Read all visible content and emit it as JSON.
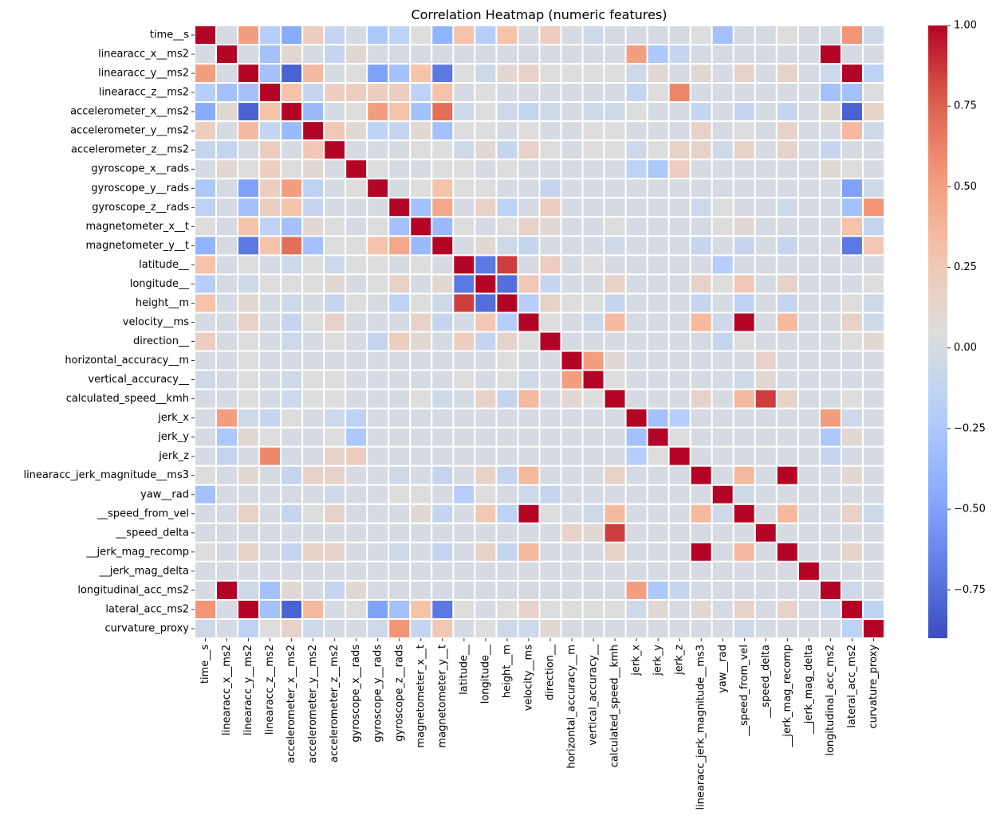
{
  "chart_data": {
    "type": "heatmap",
    "title": "Correlation Heatmap (numeric features)",
    "xlabel": "",
    "ylabel": "",
    "colormap": "coolwarm",
    "vmin": -0.9,
    "vmax": 1.0,
    "colorbar_ticks": [
      1.0,
      0.75,
      0.5,
      0.25,
      0.0,
      -0.25,
      -0.5,
      -0.75
    ],
    "colorbar_tick_labels": [
      "1.00",
      "0.75",
      "0.50",
      "0.25",
      "0.00",
      "−0.25",
      "−0.50",
      "−0.75"
    ],
    "labels": [
      "time__s",
      "linearacc_x__ms2",
      "linearacc_y__ms2",
      "linearacc_z__ms2",
      "accelerometer_x__ms2",
      "accelerometer_y__ms2",
      "accelerometer_z__ms2",
      "gyroscope_x__rads",
      "gyroscope_y__rads",
      "gyroscope_z__rads",
      "magnetometer_x__t",
      "magnetometer_y__t",
      "latitude__",
      "longitude__",
      "height__m",
      "velocity__ms",
      "direction__",
      "horizontal_accuracy__m",
      "vertical_accuracy__",
      "calculated_speed__kmh",
      "jerk_x",
      "jerk_y",
      "jerk_z",
      "linearacc_jerk_magnitude__ms3",
      "yaw__rad",
      "__speed_from_vel",
      "__speed_delta",
      "__jerk_mag_recomp",
      "__jerk_mag_delta",
      "longitudinal_acc_ms2",
      "lateral_acc_ms2",
      "curvature_proxy"
    ],
    "matrix": [
      [
        1.0,
        0.0,
        0.5,
        -0.2,
        -0.45,
        0.2,
        -0.1,
        0.0,
        -0.25,
        -0.15,
        0.05,
        -0.4,
        0.3,
        -0.2,
        0.3,
        0.0,
        0.2,
        0.0,
        -0.05,
        0.0,
        0.0,
        0.0,
        0.0,
        0.05,
        -0.3,
        0.0,
        0.0,
        0.05,
        0.0,
        0.0,
        0.55,
        -0.05
      ],
      [
        0.0,
        1.0,
        0.0,
        -0.3,
        0.1,
        0.0,
        -0.1,
        0.1,
        0.0,
        0.0,
        0.0,
        0.0,
        0.0,
        0.0,
        0.0,
        0.0,
        0.0,
        0.0,
        0.0,
        0.0,
        0.5,
        -0.25,
        -0.1,
        0.0,
        0.0,
        0.0,
        0.0,
        0.0,
        0.0,
        1.0,
        0.0,
        0.0
      ],
      [
        0.5,
        0.0,
        1.0,
        -0.3,
        -0.8,
        0.35,
        0.0,
        0.05,
        -0.5,
        -0.3,
        0.3,
        -0.7,
        0.05,
        -0.05,
        0.1,
        0.15,
        0.05,
        0.05,
        0.05,
        0.05,
        -0.05,
        0.1,
        0.0,
        0.1,
        0.0,
        0.15,
        0.0,
        0.15,
        0.0,
        -0.05,
        1.0,
        -0.15
      ],
      [
        -0.2,
        -0.3,
        -0.3,
        1.0,
        0.3,
        -0.1,
        0.2,
        0.2,
        0.2,
        0.2,
        -0.15,
        0.3,
        0.0,
        0.05,
        0.0,
        0.0,
        0.0,
        0.0,
        0.0,
        0.0,
        -0.1,
        0.05,
        0.6,
        0.0,
        0.0,
        0.0,
        0.0,
        0.0,
        0.0,
        -0.3,
        -0.3,
        0.05
      ],
      [
        -0.45,
        0.1,
        -0.8,
        0.3,
        1.0,
        -0.35,
        0.0,
        0.05,
        0.5,
        0.3,
        -0.3,
        0.7,
        -0.05,
        0.05,
        -0.05,
        -0.1,
        -0.05,
        0.0,
        -0.05,
        -0.05,
        0.05,
        0.0,
        0.0,
        -0.1,
        0.0,
        -0.1,
        0.0,
        -0.1,
        0.0,
        0.1,
        -0.8,
        0.15
      ],
      [
        0.2,
        0.0,
        0.35,
        -0.1,
        -0.35,
        1.0,
        0.25,
        0.1,
        -0.15,
        -0.1,
        0.1,
        -0.3,
        0.05,
        0.05,
        0.0,
        0.05,
        0.0,
        0.0,
        0.05,
        0.05,
        0.0,
        0.0,
        0.0,
        0.15,
        0.0,
        0.05,
        0.0,
        0.15,
        0.0,
        0.0,
        0.35,
        -0.05
      ],
      [
        -0.1,
        -0.1,
        0.0,
        0.2,
        0.0,
        0.25,
        1.0,
        0.0,
        0.0,
        0.0,
        0.05,
        0.05,
        -0.05,
        0.1,
        -0.1,
        0.15,
        0.05,
        0.0,
        0.05,
        0.05,
        -0.05,
        0.05,
        0.15,
        0.15,
        -0.05,
        0.15,
        0.0,
        0.15,
        0.0,
        -0.1,
        0.0,
        0.0
      ],
      [
        0.0,
        0.1,
        0.05,
        0.2,
        0.05,
        0.1,
        0.0,
        1.0,
        0.05,
        0.0,
        0.0,
        0.05,
        0.05,
        0.0,
        0.05,
        0.0,
        0.0,
        0.0,
        0.0,
        0.0,
        -0.15,
        -0.25,
        0.2,
        0.0,
        0.0,
        0.0,
        0.0,
        0.0,
        0.0,
        0.1,
        0.05,
        0.0
      ],
      [
        -0.25,
        0.0,
        -0.5,
        0.2,
        0.5,
        -0.15,
        0.0,
        0.05,
        1.0,
        0.0,
        0.05,
        0.3,
        0.05,
        0.05,
        0.0,
        0.0,
        -0.1,
        0.0,
        0.0,
        0.0,
        0.0,
        0.0,
        0.0,
        0.0,
        0.0,
        0.0,
        0.0,
        0.0,
        0.0,
        0.0,
        -0.5,
        -0.05
      ],
      [
        -0.15,
        0.0,
        -0.3,
        0.2,
        0.3,
        -0.1,
        0.0,
        0.0,
        0.0,
        1.0,
        -0.3,
        0.45,
        0.0,
        0.15,
        -0.15,
        0.0,
        0.2,
        0.0,
        0.0,
        0.0,
        0.0,
        0.0,
        0.0,
        -0.05,
        0.05,
        0.0,
        0.0,
        -0.05,
        0.0,
        0.0,
        -0.3,
        0.55
      ],
      [
        0.05,
        0.0,
        0.3,
        -0.15,
        -0.3,
        0.1,
        0.05,
        0.0,
        0.05,
        -0.3,
        1.0,
        -0.35,
        0.05,
        0.0,
        0.05,
        0.15,
        0.1,
        0.0,
        0.0,
        0.05,
        0.0,
        0.0,
        0.0,
        0.0,
        0.05,
        0.1,
        0.0,
        0.0,
        0.0,
        0.0,
        0.3,
        -0.1
      ],
      [
        -0.4,
        0.0,
        -0.7,
        0.3,
        0.7,
        -0.3,
        0.05,
        0.05,
        0.3,
        0.45,
        -0.35,
        1.0,
        0.0,
        0.1,
        -0.05,
        -0.1,
        0.0,
        0.0,
        0.0,
        -0.05,
        0.0,
        0.0,
        0.0,
        -0.1,
        0.0,
        -0.1,
        0.0,
        -0.1,
        0.0,
        0.0,
        -0.7,
        0.25
      ],
      [
        0.3,
        0.0,
        0.05,
        0.0,
        -0.05,
        0.05,
        -0.05,
        0.05,
        0.05,
        0.0,
        0.05,
        0.0,
        1.0,
        -0.7,
        0.85,
        0.0,
        0.2,
        0.0,
        0.05,
        0.0,
        0.0,
        0.0,
        0.0,
        0.0,
        -0.2,
        0.0,
        0.0,
        0.0,
        0.0,
        0.0,
        0.0,
        0.0
      ],
      [
        -0.2,
        0.0,
        -0.05,
        0.05,
        0.05,
        0.05,
        0.1,
        0.0,
        0.05,
        0.15,
        0.0,
        0.1,
        -0.7,
        1.0,
        -0.75,
        0.25,
        -0.1,
        0.0,
        0.0,
        0.15,
        0.0,
        0.0,
        0.0,
        0.15,
        0.05,
        0.25,
        0.0,
        0.15,
        0.0,
        0.0,
        0.0,
        0.05
      ],
      [
        0.3,
        0.0,
        0.1,
        0.0,
        -0.05,
        0.0,
        -0.1,
        0.05,
        0.0,
        -0.15,
        0.05,
        -0.05,
        0.85,
        -0.75,
        1.0,
        -0.2,
        0.15,
        0.05,
        0.05,
        -0.1,
        0.0,
        0.0,
        0.0,
        -0.1,
        0.0,
        -0.15,
        0.0,
        -0.1,
        0.0,
        0.0,
        0.05,
        -0.05
      ],
      [
        0.0,
        0.0,
        0.15,
        0.0,
        -0.1,
        0.05,
        0.15,
        0.0,
        0.0,
        0.0,
        0.15,
        -0.1,
        0.0,
        0.25,
        -0.2,
        1.0,
        0.05,
        0.0,
        -0.05,
        0.35,
        0.0,
        0.0,
        0.0,
        0.35,
        -0.05,
        1.0,
        0.0,
        0.35,
        0.0,
        0.0,
        0.15,
        -0.05
      ],
      [
        0.2,
        0.0,
        0.05,
        0.0,
        -0.05,
        0.0,
        0.05,
        0.0,
        -0.1,
        0.2,
        0.1,
        0.0,
        0.2,
        -0.1,
        0.15,
        0.05,
        1.0,
        0.0,
        0.0,
        0.0,
        0.0,
        0.0,
        0.0,
        0.0,
        -0.1,
        0.05,
        0.0,
        0.0,
        0.0,
        0.0,
        0.05,
        0.1
      ],
      [
        0.0,
        0.0,
        0.05,
        0.0,
        0.0,
        0.0,
        0.0,
        0.0,
        0.0,
        0.0,
        0.0,
        0.0,
        0.0,
        0.0,
        0.05,
        0.0,
        0.0,
        1.0,
        0.5,
        0.1,
        0.0,
        0.0,
        0.0,
        0.0,
        0.0,
        0.0,
        0.15,
        0.0,
        0.0,
        0.0,
        0.0,
        0.0
      ],
      [
        -0.05,
        0.0,
        0.05,
        0.0,
        -0.05,
        0.05,
        0.05,
        0.0,
        0.0,
        0.0,
        0.0,
        0.0,
        0.05,
        0.0,
        0.05,
        -0.05,
        0.0,
        0.5,
        1.0,
        0.05,
        0.0,
        0.0,
        0.0,
        0.0,
        0.0,
        -0.05,
        0.1,
        0.0,
        0.0,
        0.0,
        0.0,
        0.0
      ],
      [
        0.0,
        0.0,
        0.05,
        0.0,
        -0.05,
        0.05,
        0.05,
        0.0,
        0.0,
        0.0,
        0.05,
        -0.05,
        0.0,
        0.15,
        -0.1,
        0.35,
        0.0,
        0.1,
        0.05,
        1.0,
        0.0,
        0.0,
        0.0,
        0.15,
        0.0,
        0.35,
        0.85,
        0.15,
        0.0,
        0.0,
        0.05,
        0.0
      ],
      [
        0.0,
        0.5,
        -0.05,
        -0.1,
        0.05,
        0.0,
        -0.05,
        -0.15,
        0.0,
        0.0,
        0.0,
        0.0,
        0.0,
        0.0,
        0.0,
        0.0,
        0.0,
        0.0,
        0.0,
        0.0,
        1.0,
        -0.3,
        -0.2,
        0.0,
        0.0,
        0.0,
        0.0,
        0.0,
        0.0,
        0.5,
        -0.05,
        0.0
      ],
      [
        0.0,
        -0.25,
        0.1,
        0.05,
        0.0,
        0.0,
        0.05,
        -0.25,
        0.0,
        0.0,
        0.0,
        0.0,
        0.0,
        0.0,
        0.0,
        0.0,
        0.0,
        0.0,
        0.0,
        0.0,
        -0.3,
        1.0,
        0.05,
        0.0,
        0.0,
        0.0,
        0.0,
        0.0,
        0.0,
        -0.25,
        0.1,
        0.0
      ],
      [
        0.0,
        -0.1,
        0.0,
        0.6,
        0.0,
        0.0,
        0.15,
        0.2,
        0.0,
        0.0,
        0.0,
        0.0,
        0.0,
        0.0,
        0.0,
        0.0,
        0.0,
        0.0,
        0.0,
        0.0,
        -0.2,
        0.05,
        1.0,
        0.0,
        0.0,
        0.0,
        0.0,
        0.0,
        0.0,
        -0.1,
        0.0,
        0.0
      ],
      [
        0.05,
        0.0,
        0.1,
        0.0,
        -0.1,
        0.15,
        0.15,
        0.0,
        0.0,
        -0.05,
        0.0,
        -0.1,
        0.0,
        0.15,
        -0.1,
        0.35,
        0.0,
        0.0,
        0.0,
        0.15,
        0.0,
        0.0,
        0.0,
        1.0,
        0.0,
        0.35,
        0.0,
        1.0,
        0.0,
        0.0,
        0.1,
        0.0
      ],
      [
        -0.3,
        0.0,
        0.0,
        0.0,
        0.0,
        0.0,
        -0.05,
        0.0,
        0.0,
        0.05,
        0.05,
        0.0,
        -0.2,
        0.05,
        0.0,
        -0.05,
        -0.1,
        0.0,
        0.0,
        0.0,
        0.0,
        0.0,
        0.0,
        0.0,
        1.0,
        -0.05,
        0.0,
        0.0,
        0.0,
        0.0,
        0.0,
        0.0
      ],
      [
        0.0,
        0.0,
        0.15,
        0.0,
        -0.1,
        0.05,
        0.15,
        0.0,
        0.0,
        0.0,
        0.1,
        -0.1,
        0.0,
        0.25,
        -0.15,
        1.0,
        0.05,
        0.0,
        -0.05,
        0.35,
        0.0,
        0.0,
        0.0,
        0.35,
        -0.05,
        1.0,
        0.0,
        0.35,
        0.0,
        0.0,
        0.15,
        -0.05
      ],
      [
        0.0,
        0.0,
        0.0,
        0.0,
        0.0,
        0.0,
        0.0,
        0.0,
        0.0,
        0.0,
        0.0,
        0.0,
        0.0,
        0.0,
        0.0,
        0.0,
        0.0,
        0.15,
        0.1,
        0.85,
        0.0,
        0.0,
        0.0,
        0.0,
        0.0,
        0.0,
        1.0,
        0.0,
        0.0,
        0.0,
        0.0,
        0.0
      ],
      [
        0.05,
        0.0,
        0.15,
        0.0,
        -0.1,
        0.15,
        0.15,
        0.0,
        0.0,
        -0.05,
        0.0,
        -0.1,
        0.0,
        0.15,
        -0.1,
        0.35,
        0.0,
        0.0,
        0.0,
        0.15,
        0.0,
        0.0,
        0.0,
        1.0,
        0.0,
        0.35,
        0.0,
        1.0,
        0.0,
        0.0,
        0.15,
        0.0
      ],
      [
        0.0,
        0.0,
        0.0,
        0.0,
        0.0,
        0.0,
        0.0,
        0.0,
        0.0,
        0.0,
        0.0,
        0.0,
        0.0,
        0.0,
        0.0,
        0.0,
        0.0,
        0.0,
        0.0,
        0.0,
        0.0,
        0.0,
        0.0,
        0.0,
        0.0,
        0.0,
        0.0,
        0.0,
        1.0,
        0.0,
        0.0,
        0.0
      ],
      [
        0.0,
        1.0,
        -0.05,
        -0.3,
        0.1,
        0.0,
        -0.1,
        0.1,
        0.0,
        0.0,
        0.0,
        0.0,
        0.0,
        0.0,
        0.0,
        0.0,
        0.0,
        0.0,
        0.0,
        0.0,
        0.5,
        -0.25,
        -0.1,
        0.0,
        0.0,
        0.0,
        0.0,
        0.0,
        0.0,
        1.0,
        -0.05,
        0.0
      ],
      [
        0.55,
        0.0,
        1.0,
        -0.3,
        -0.8,
        0.35,
        0.0,
        0.05,
        -0.5,
        -0.3,
        0.3,
        -0.7,
        0.05,
        0.0,
        0.05,
        0.15,
        0.05,
        0.05,
        0.05,
        0.05,
        -0.05,
        0.1,
        0.0,
        0.1,
        0.0,
        0.15,
        0.0,
        0.15,
        0.0,
        -0.05,
        1.0,
        -0.15
      ],
      [
        -0.05,
        0.0,
        -0.15,
        0.05,
        0.15,
        -0.05,
        0.0,
        0.0,
        -0.05,
        0.55,
        -0.1,
        0.25,
        0.0,
        0.05,
        -0.05,
        -0.05,
        0.1,
        0.0,
        0.0,
        0.0,
        0.0,
        0.0,
        0.0,
        0.0,
        0.0,
        -0.05,
        0.0,
        0.0,
        0.0,
        0.0,
        -0.15,
        1.0
      ]
    ]
  }
}
